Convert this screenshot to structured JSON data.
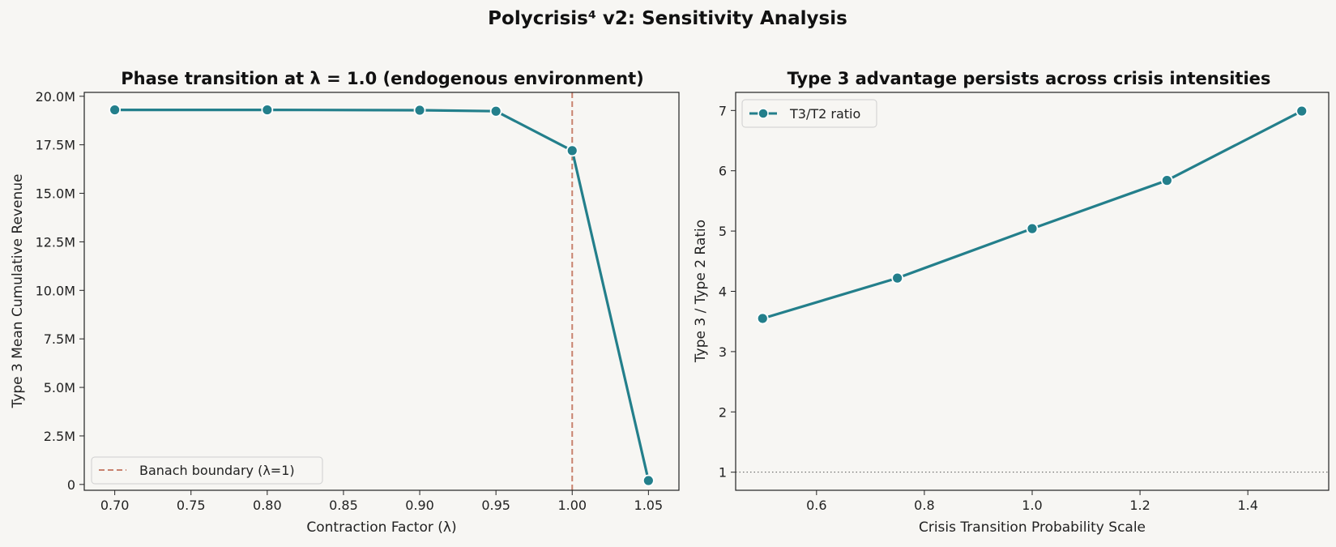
{
  "suptitle": "Polycrisis⁴ v2: Sensitivity Analysis",
  "colors": {
    "series": "#237f8b",
    "boundary": "#c8826e",
    "background": "#f7f6f3",
    "reference": "#555555"
  },
  "chart_data": [
    {
      "type": "line",
      "title": "Phase transition at λ = 1.0 (endogenous environment)",
      "xlabel": "Contraction Factor (λ)",
      "ylabel": "Type 3 Mean Cumulative Revenue",
      "x": [
        0.7,
        0.8,
        0.9,
        0.95,
        1.0,
        1.05
      ],
      "y": [
        19.3,
        19.3,
        19.28,
        19.23,
        17.2,
        0.2
      ],
      "y_units": "millions",
      "xlim": [
        0.68,
        1.07
      ],
      "ylim": [
        -0.3,
        20.2
      ],
      "xticks": [
        0.7,
        0.75,
        0.8,
        0.85,
        0.9,
        0.95,
        1.0,
        1.05
      ],
      "xtick_labels": [
        "0.70",
        "0.75",
        "0.80",
        "0.85",
        "0.90",
        "0.95",
        "1.00",
        "1.05"
      ],
      "yticks": [
        0,
        2.5,
        5,
        7.5,
        10,
        12.5,
        15,
        17.5,
        20
      ],
      "ytick_labels": [
        "0",
        "2.5M",
        "5.0M",
        "7.5M",
        "10.0M",
        "12.5M",
        "15.0M",
        "17.5M",
        "20.0M"
      ],
      "vline": {
        "x": 1.0,
        "label": "Banach boundary (λ=1)"
      },
      "legend": "lower-left",
      "grid": false
    },
    {
      "type": "line",
      "title": "Type 3 advantage persists across crisis intensities",
      "xlabel": "Crisis Transition Probability Scale",
      "ylabel": "Type 3 / Type 2 Ratio",
      "series": [
        {
          "name": "T3/T2 ratio",
          "x": [
            0.5,
            0.75,
            1.0,
            1.25,
            1.5
          ],
          "y": [
            3.55,
            4.22,
            5.04,
            5.84,
            6.99
          ]
        }
      ],
      "xlim": [
        0.45,
        1.55
      ],
      "ylim": [
        0.7,
        7.3
      ],
      "xticks": [
        0.6,
        0.8,
        1.0,
        1.2,
        1.4
      ],
      "xtick_labels": [
        "0.6",
        "0.8",
        "1.0",
        "1.2",
        "1.4"
      ],
      "yticks": [
        1,
        2,
        3,
        4,
        5,
        6,
        7
      ],
      "ytick_labels": [
        "1",
        "2",
        "3",
        "4",
        "5",
        "6",
        "7"
      ],
      "hline": {
        "y": 1
      },
      "legend": "top-left",
      "grid": false
    }
  ]
}
